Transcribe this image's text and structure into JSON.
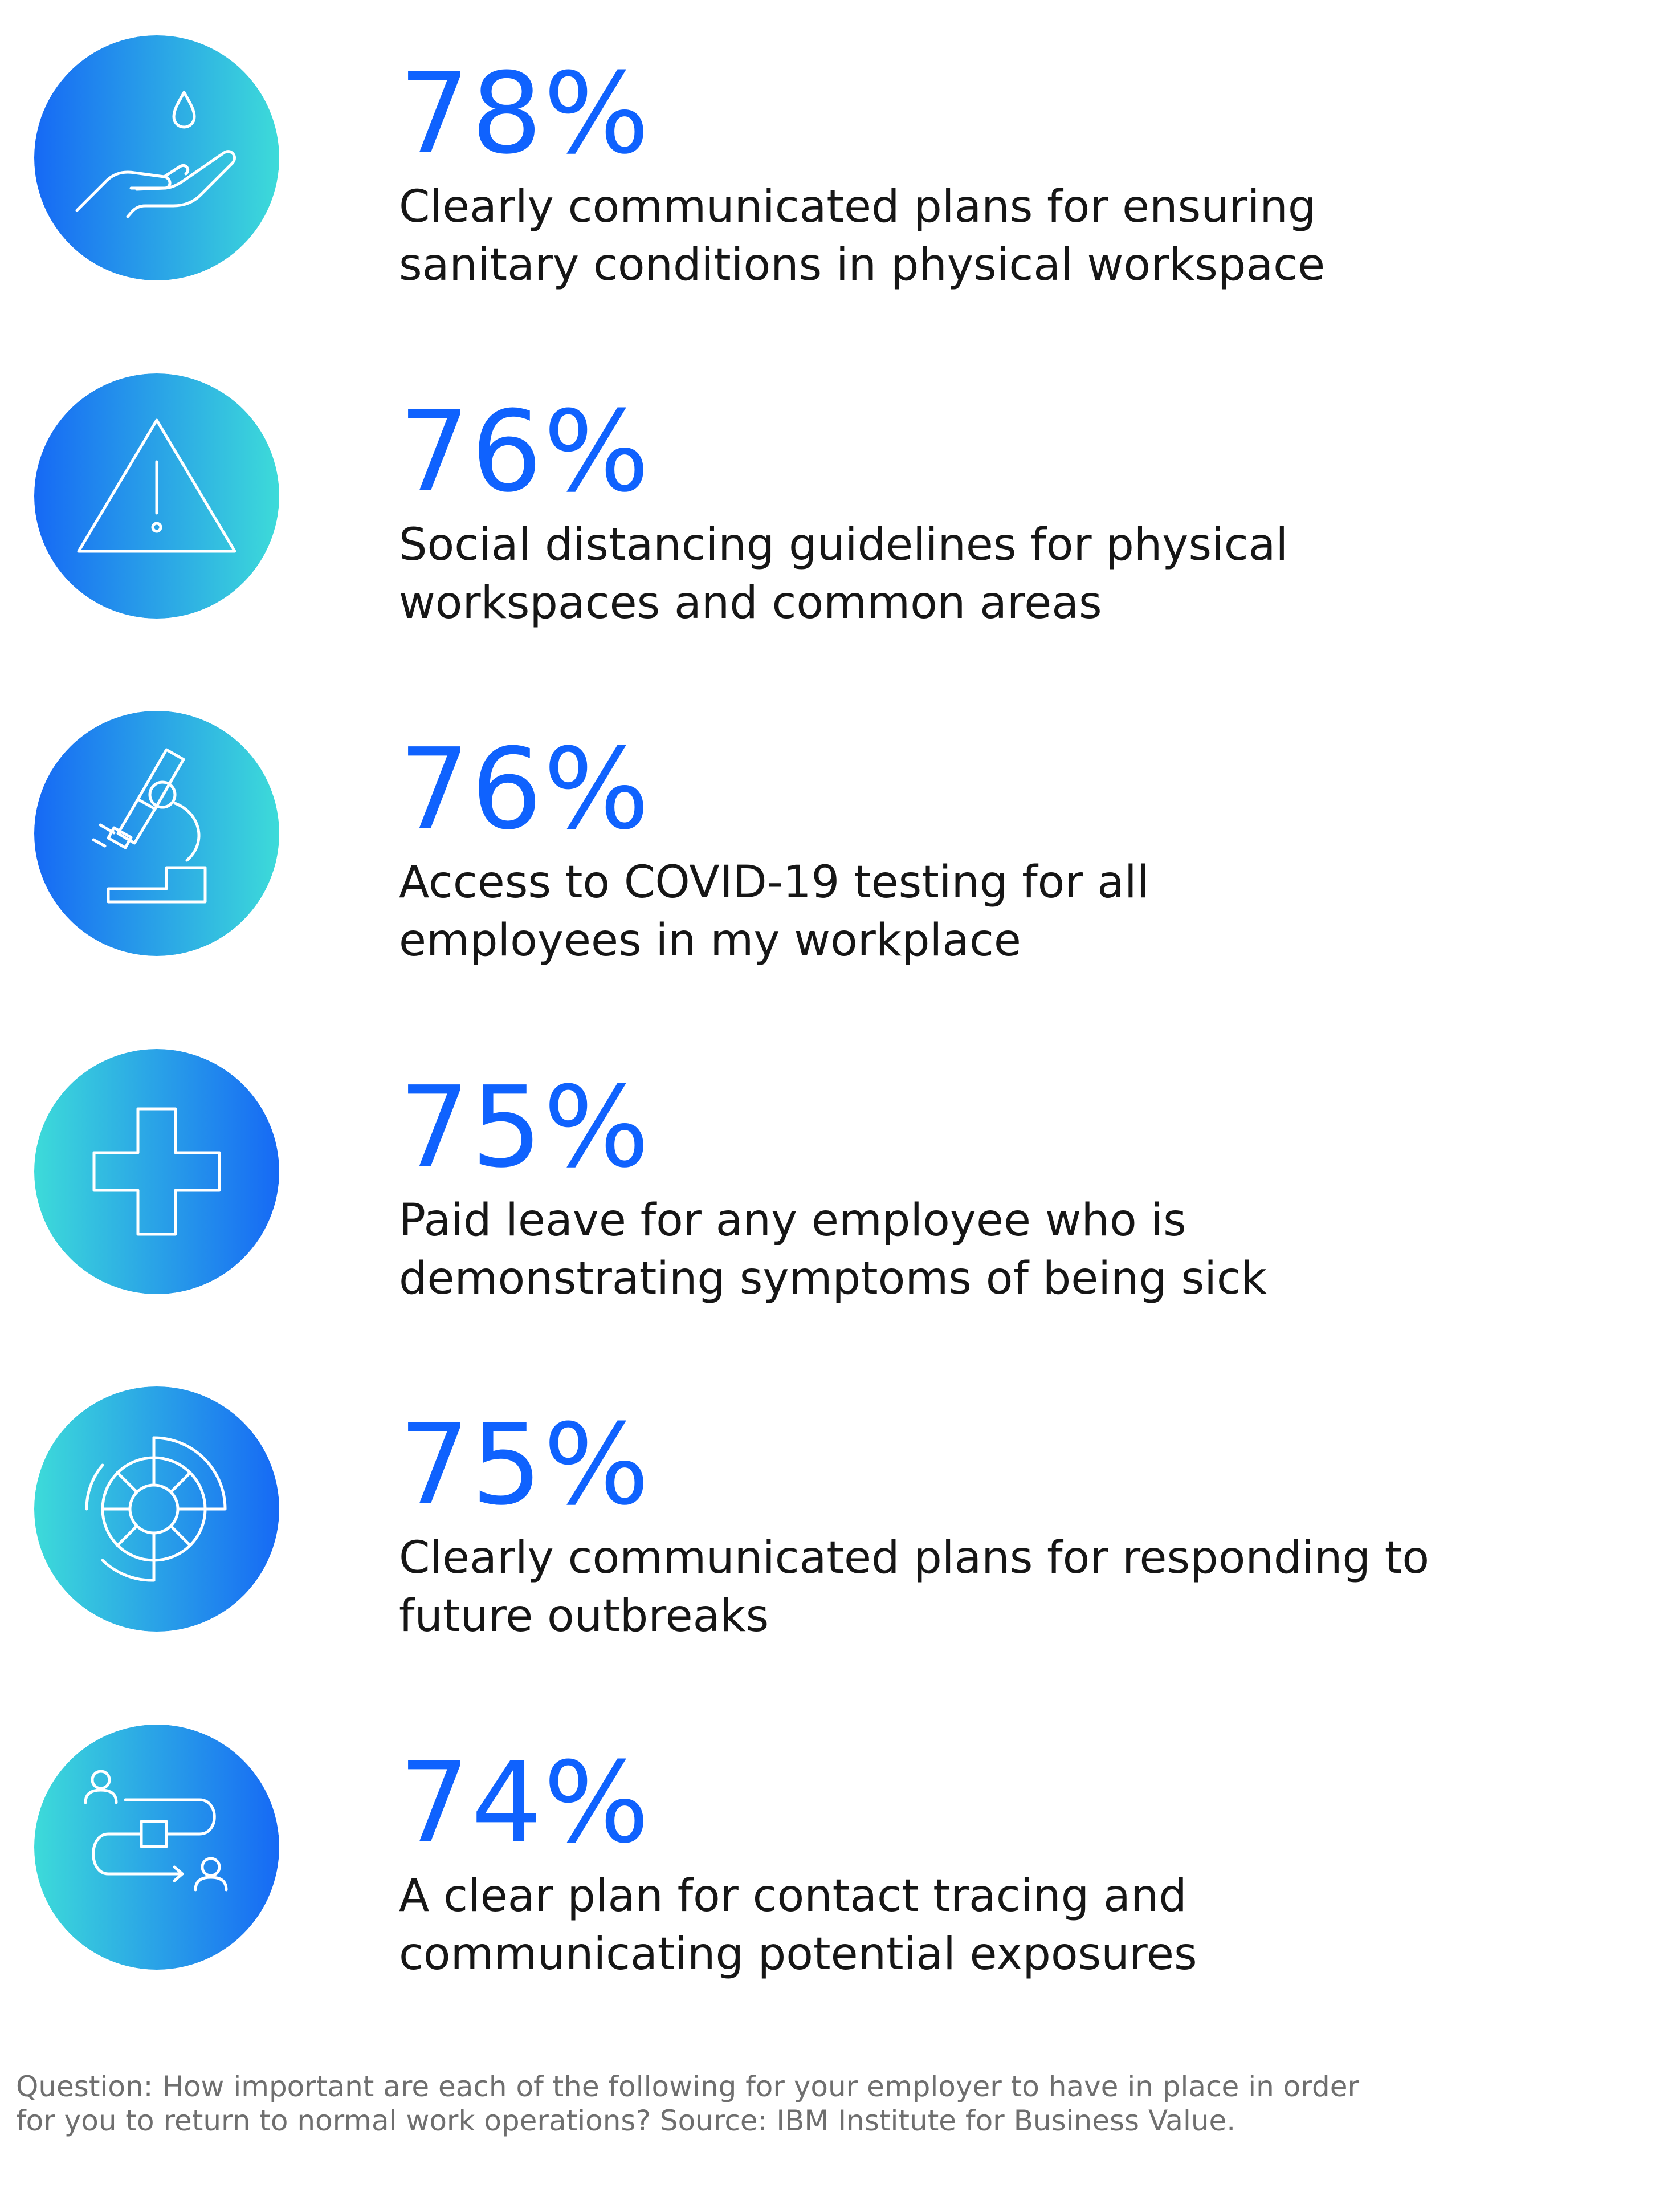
{
  "theme": {
    "accent": "#0f62fe",
    "gradient_blue": "#1669f5",
    "gradient_cyan": "#3ddbd9",
    "icon_stroke": "#ffffff",
    "text_color": "#161616",
    "footnote_color": "#6f6f6f"
  },
  "items": [
    {
      "percent": "78%",
      "icon": "hand-water-drop-icon",
      "lines": [
        "Clearly communicated plans for ensuring",
        "sanitary conditions in physical workspace"
      ]
    },
    {
      "percent": "76%",
      "icon": "warning-triangle-icon",
      "lines": [
        "Social distancing guidelines for physical",
        "workspaces and common areas"
      ]
    },
    {
      "percent": "76%",
      "icon": "microscope-icon",
      "lines": [
        "Access to COVID-19 testing for all",
        "employees in my workplace"
      ]
    },
    {
      "percent": "75%",
      "icon": "medical-cross-icon",
      "lines": [
        "Paid leave for any employee who is",
        "demonstrating symptoms of being sick"
      ]
    },
    {
      "percent": "75%",
      "icon": "radial-target-icon",
      "lines": [
        "Clearly communicated plans for responding to",
        "future outbreaks"
      ]
    },
    {
      "percent": "74%",
      "icon": "contact-tracing-flow-icon",
      "lines": [
        "A clear plan for contact tracing and",
        "communicating potential exposures"
      ]
    }
  ],
  "footnote": {
    "lines": [
      "Question: How important are each of the following for your employer to have in place in order",
      "for you to return to normal work operations? Source: IBM Institute for Business Value."
    ]
  }
}
